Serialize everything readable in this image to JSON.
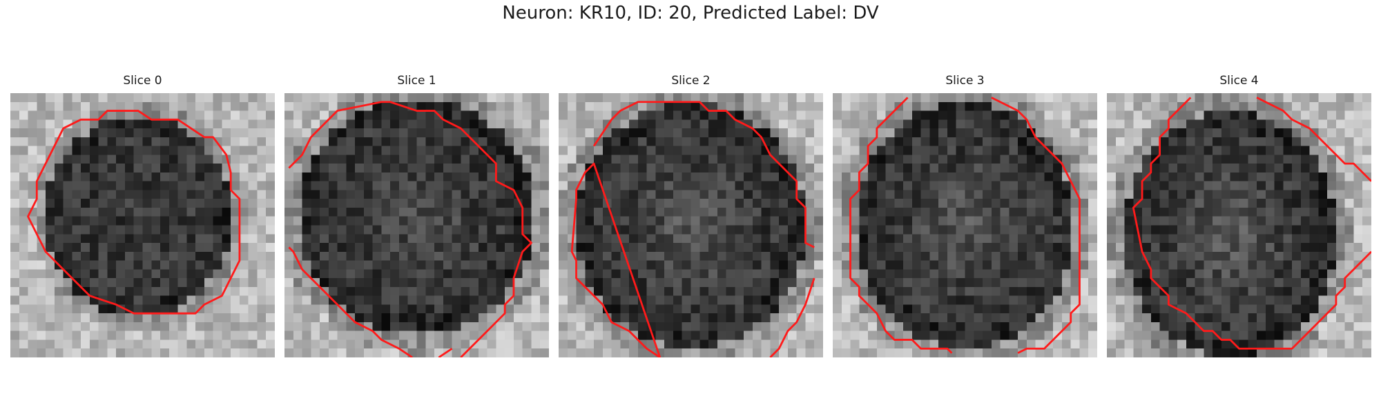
{
  "figure": {
    "title": "Neuron: KR10, ID: 20, Predicted Label: DV"
  },
  "colors": {
    "contour": "#ff1a1a"
  },
  "panels": [
    {
      "label": "Slice 0",
      "image": "grayscale cell micrograph",
      "contour": "closed-octagon"
    },
    {
      "label": "Slice 1",
      "image": "grayscale cell micrograph",
      "contour": "open-bottom-left"
    },
    {
      "label": "Slice 2",
      "image": "grayscale cell micrograph",
      "contour": "open-bottom"
    },
    {
      "label": "Slice 3",
      "image": "grayscale cell micrograph",
      "contour": "open-top-bottom"
    },
    {
      "label": "Slice 4",
      "image": "grayscale cell micrograph",
      "contour": "open-top"
    }
  ]
}
